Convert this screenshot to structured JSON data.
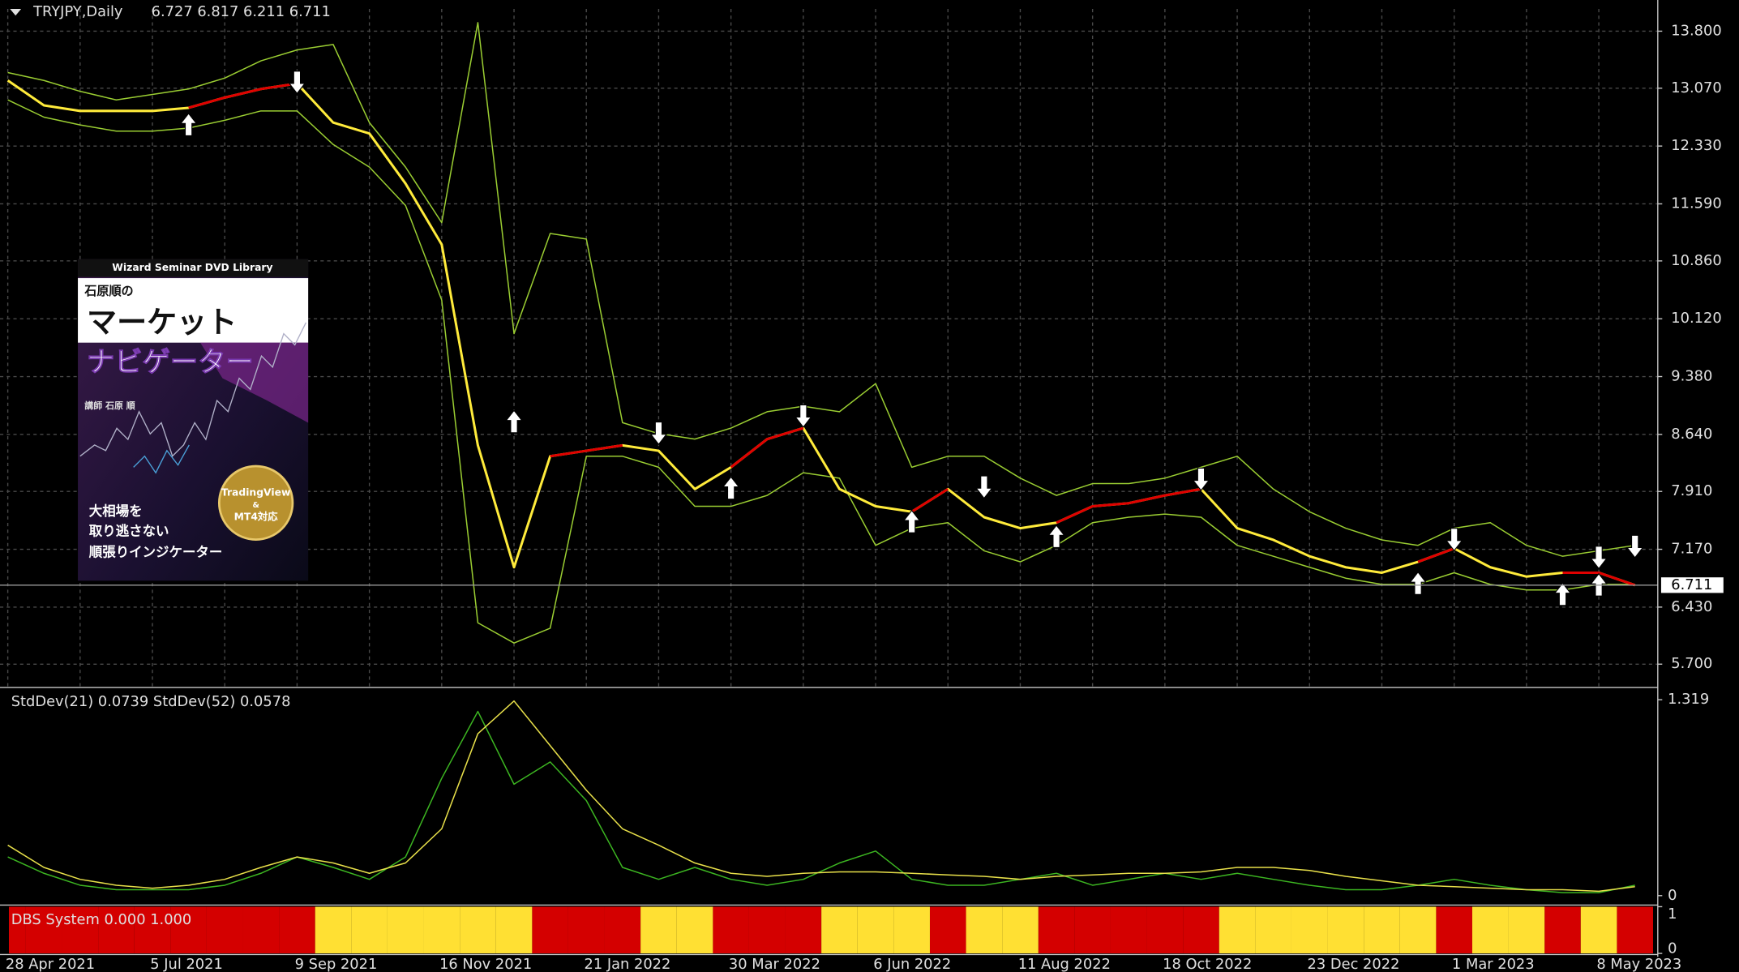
{
  "chart_data": [
    {
      "type": "line",
      "title": "TRYJPY,Daily",
      "ohlc": "6.727 6.817 6.211 6.711",
      "ylim": [
        5.415,
        14.085
      ],
      "yticks": [
        {
          "value": 13.8,
          "label": "13.800"
        },
        {
          "value": 13.07,
          "label": "13.070"
        },
        {
          "value": 12.33,
          "label": "12.330"
        },
        {
          "value": 11.59,
          "label": "11.590"
        },
        {
          "value": 10.86,
          "label": "10.860"
        },
        {
          "value": 10.12,
          "label": "10.120"
        },
        {
          "value": 9.38,
          "label": "9.380"
        },
        {
          "value": 8.64,
          "label": "8.640"
        },
        {
          "value": 7.91,
          "label": "7.910"
        },
        {
          "value": 7.17,
          "label": "7.170"
        },
        {
          "value": 6.43,
          "label": "6.430"
        },
        {
          "value": 5.7,
          "label": "5.700"
        }
      ],
      "grid": true,
      "last_price": 6.711,
      "series": [
        {
          "color": "#9acd32",
          "values": [
            13.27,
            13.17,
            13.03,
            12.92,
            12.99,
            13.06,
            13.2,
            13.42,
            13.56,
            13.63,
            12.63,
            12.06,
            11.35,
            13.91,
            9.93,
            11.21,
            11.14,
            8.79,
            8.65,
            8.58,
            8.72,
            8.93,
            9.0,
            8.93,
            9.29,
            8.22,
            8.36,
            8.36,
            8.08,
            7.86,
            8.01,
            8.01,
            8.08,
            8.22,
            8.36,
            7.94,
            7.65,
            7.44,
            7.29,
            7.22,
            7.44,
            7.51,
            7.22,
            7.08,
            7.15,
            7.22
          ]
        },
        {
          "color": "#9acd32",
          "values": [
            12.92,
            12.7,
            12.6,
            12.52,
            12.52,
            12.56,
            12.66,
            12.78,
            12.78,
            12.35,
            12.06,
            11.57,
            10.36,
            6.23,
            5.97,
            6.16,
            8.36,
            8.36,
            8.22,
            7.72,
            7.72,
            7.86,
            8.15,
            8.08,
            7.22,
            7.44,
            7.51,
            7.15,
            7.01,
            7.22,
            7.51,
            7.58,
            7.62,
            7.58,
            7.22,
            7.08,
            6.94,
            6.8,
            6.72,
            6.72,
            6.87,
            6.72,
            6.65,
            6.65,
            6.72,
            6.72
          ]
        },
        {
          "color": "#ffeb3b",
          "values": [
            13.17,
            12.85,
            12.78,
            12.78,
            12.78,
            12.82,
            12.95,
            13.06,
            13.13,
            12.63,
            12.49,
            11.85,
            11.07,
            8.5,
            6.94,
            8.36,
            8.43,
            8.5,
            8.43,
            7.94,
            8.22,
            8.58,
            8.72,
            7.94,
            7.72,
            7.65,
            7.94,
            7.58,
            7.44,
            7.51,
            7.72,
            7.76,
            7.86,
            7.94,
            7.44,
            7.29,
            7.08,
            6.94,
            6.87,
            7.01,
            7.18,
            6.94,
            6.82,
            6.87,
            6.87,
            6.71
          ]
        },
        {
          "color": "#e00000",
          "values": [
            null,
            null,
            null,
            null,
            null,
            12.82,
            12.95,
            13.06,
            13.13,
            null,
            null,
            null,
            null,
            null,
            null,
            8.36,
            8.43,
            8.5,
            null,
            null,
            8.22,
            8.58,
            8.72,
            null,
            null,
            7.65,
            7.94,
            null,
            null,
            7.51,
            7.72,
            7.76,
            7.86,
            7.94,
            null,
            null,
            null,
            null,
            null,
            7.01,
            7.18,
            null,
            null,
            6.87,
            6.87,
            6.71
          ]
        },
        {
          "color": "#ffffff",
          "marker": "arrow-up",
          "values": [
            null,
            null,
            null,
            null,
            null,
            12.59,
            null,
            null,
            null,
            null,
            null,
            null,
            null,
            null,
            8.79,
            null,
            null,
            null,
            null,
            null,
            7.94,
            null,
            null,
            null,
            null,
            7.51,
            null,
            null,
            null,
            7.32,
            null,
            null,
            null,
            null,
            null,
            null,
            null,
            null,
            null,
            6.72,
            null,
            null,
            null,
            6.58,
            6.7,
            null
          ]
        },
        {
          "color": "#ffffff",
          "marker": "arrow-down",
          "values": [
            null,
            null,
            null,
            null,
            null,
            null,
            null,
            null,
            13.16,
            null,
            null,
            null,
            null,
            null,
            null,
            null,
            null,
            null,
            8.67,
            null,
            null,
            null,
            8.89,
            null,
            null,
            null,
            null,
            7.98,
            null,
            null,
            null,
            null,
            null,
            8.08,
            null,
            null,
            null,
            null,
            null,
            null,
            7.31,
            null,
            null,
            null,
            7.08,
            7.22
          ]
        }
      ]
    },
    {
      "type": "line",
      "title": "StdDev(21) 0.0739 StdDev(52) 0.0578",
      "ylim": [
        -0.052,
        1.386
      ],
      "yticks": [
        1.319,
        0
      ],
      "series": [
        {
          "color": "#3cb521",
          "values": [
            0.26,
            0.15,
            0.07,
            0.04,
            0.04,
            0.04,
            0.07,
            0.15,
            0.26,
            0.19,
            0.11,
            0.26,
            0.79,
            1.24,
            0.75,
            0.9,
            0.64,
            0.19,
            0.11,
            0.19,
            0.11,
            0.07,
            0.11,
            0.22,
            0.3,
            0.11,
            0.07,
            0.07,
            0.11,
            0.15,
            0.07,
            0.11,
            0.15,
            0.11,
            0.15,
            0.11,
            0.07,
            0.04,
            0.04,
            0.07,
            0.11,
            0.07,
            0.04,
            0.02,
            0.02,
            0.07
          ]
        },
        {
          "color": "#e8e04a",
          "values": [
            0.34,
            0.19,
            0.11,
            0.07,
            0.05,
            0.07,
            0.11,
            0.19,
            0.26,
            0.22,
            0.15,
            0.22,
            0.45,
            1.09,
            1.31,
            1.01,
            0.71,
            0.45,
            0.34,
            0.22,
            0.15,
            0.13,
            0.15,
            0.16,
            0.16,
            0.15,
            0.14,
            0.13,
            0.11,
            0.13,
            0.14,
            0.15,
            0.15,
            0.16,
            0.19,
            0.19,
            0.17,
            0.13,
            0.1,
            0.07,
            0.06,
            0.05,
            0.04,
            0.04,
            0.03,
            0.06
          ]
        }
      ]
    },
    {
      "type": "bar",
      "title": "DBS System 0.000 1.000",
      "categories": [
        "28 Apr 2021",
        null,
        null,
        null,
        "5 Jul 2021",
        null,
        null,
        null,
        "9 Sep 2021",
        null,
        null,
        null,
        "16 Nov 2021",
        null,
        null,
        null,
        "21 Jan 2022",
        null,
        null,
        null,
        "30 Mar 2022",
        null,
        null,
        null,
        "6 Jun 2022",
        null,
        null,
        null,
        "11 Aug 2022",
        null,
        null,
        null,
        "18 Oct 2022",
        null,
        null,
        null,
        "23 Dec 2022",
        null,
        null,
        null,
        "1 Mar 2023",
        null,
        null,
        null,
        "8 May 2023",
        null
      ],
      "ylim": [
        0,
        1
      ],
      "yticks": [
        1,
        0
      ],
      "series": [
        {
          "color": "#d40000",
          "values": [
            1,
            1,
            1,
            1,
            1,
            1,
            1,
            1,
            1,
            0,
            0,
            0,
            0,
            0,
            0,
            1,
            1,
            1,
            0,
            0,
            1,
            1,
            1,
            0,
            0,
            0,
            1,
            0,
            0,
            1,
            1,
            1,
            1,
            1,
            0,
            0,
            0,
            0,
            0,
            0,
            1,
            0,
            0,
            1,
            0,
            1
          ]
        },
        {
          "color": "#ffe033",
          "values": [
            0,
            0,
            0,
            0,
            0,
            0,
            0,
            0,
            0,
            1,
            1,
            1,
            1,
            1,
            1,
            0,
            0,
            0,
            1,
            1,
            0,
            0,
            0,
            1,
            1,
            1,
            0,
            1,
            1,
            0,
            0,
            0,
            0,
            0,
            1,
            1,
            1,
            1,
            1,
            1,
            0,
            1,
            1,
            0,
            1,
            0
          ]
        }
      ]
    }
  ],
  "ad": {
    "series_label": "Wizard Seminar DVD Library",
    "author": "石原順の",
    "title_line1": "マーケット",
    "title_line2": "ナビゲーター",
    "lecturer": "講師 石原 順",
    "badge_1": "TradingView",
    "badge_2": "&",
    "badge_3": "MT4対応",
    "tagline_1": "大相場を",
    "tagline_2": "取り逃さない",
    "tagline_3": "順張りインジケーター"
  }
}
